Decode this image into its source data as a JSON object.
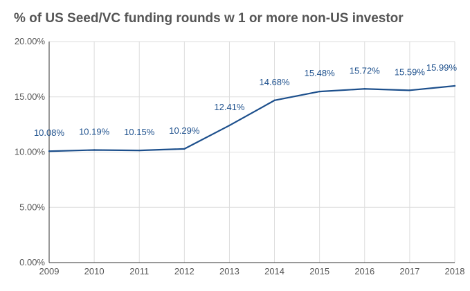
{
  "chart_data": {
    "type": "line",
    "title": "% of US Seed/VC funding rounds w 1 or more non-US investor",
    "xlabel": "",
    "ylabel": "",
    "categories": [
      "2009",
      "2010",
      "2011",
      "2012",
      "2013",
      "2014",
      "2015",
      "2016",
      "2017",
      "2018"
    ],
    "series": [
      {
        "values": [
          10.08,
          10.19,
          10.15,
          10.29,
          12.41,
          14.68,
          15.48,
          15.72,
          15.59,
          15.99
        ],
        "labels": [
          "10.08%",
          "10.19%",
          "10.15%",
          "10.29%",
          "12.41%",
          "14.68%",
          "15.48%",
          "15.72%",
          "15.59%",
          "15.99%"
        ],
        "color": "#1c4f8c"
      }
    ],
    "ylim": [
      0,
      20
    ],
    "yticks": [
      0,
      5,
      10,
      15,
      20
    ],
    "ytick_labels": [
      "0.00%",
      "5.00%",
      "10.00%",
      "15.00%",
      "20.00%"
    ],
    "grid": true,
    "legend": "none",
    "colors": {
      "line": "#1c4f8c",
      "grid": "#dddddd",
      "axis": "#333333",
      "text": "#555555"
    }
  }
}
